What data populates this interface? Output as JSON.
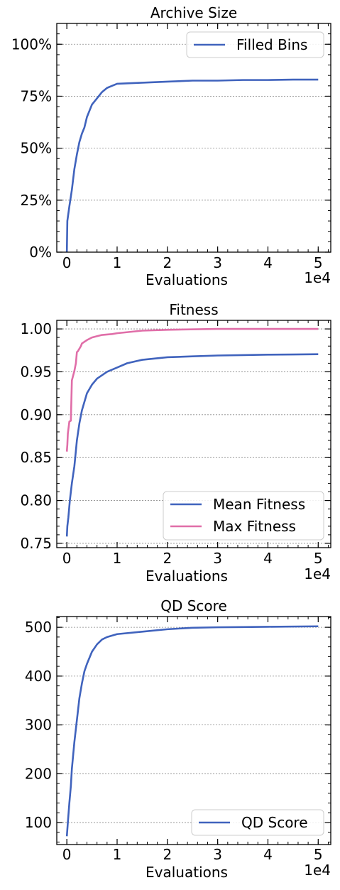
{
  "colors": {
    "blue": "#4063bd",
    "pink": "#e06ea8",
    "grid": "#8a8a8a"
  },
  "chart_data": [
    {
      "type": "line",
      "title": "Archive Size",
      "xlabel": "Evaluations",
      "ylabel": "",
      "x_multiplier_label": "1e4",
      "xlim": [
        -0.2,
        5.25
      ],
      "ylim": [
        0,
        110
      ],
      "xticks": [
        0,
        1,
        2,
        3,
        4,
        5
      ],
      "xtick_labels": [
        "0",
        "1",
        "2",
        "3",
        "4",
        "5"
      ],
      "yticks": [
        0,
        25,
        50,
        75,
        100
      ],
      "ytick_labels": [
        "0%",
        "25%",
        "50%",
        "75%",
        "100%"
      ],
      "grid": true,
      "legend_position": "top-right",
      "series": [
        {
          "name": "Filled Bins",
          "color": "#4063bd",
          "x": [
            0,
            0.01,
            0.05,
            0.1,
            0.15,
            0.2,
            0.25,
            0.3,
            0.35,
            0.4,
            0.5,
            0.6,
            0.7,
            0.8,
            0.9,
            1.0,
            1.5,
            2.0,
            2.5,
            3.0,
            3.5,
            4.0,
            4.5,
            5.0
          ],
          "y": [
            0,
            15,
            22,
            30,
            40,
            47,
            53,
            57,
            60,
            65,
            71,
            74,
            77,
            79,
            80,
            81,
            81.5,
            82,
            82.5,
            82.5,
            82.8,
            82.8,
            83,
            83
          ]
        }
      ]
    },
    {
      "type": "line",
      "title": "Fitness",
      "xlabel": "Evaluations",
      "ylabel": "",
      "x_multiplier_label": "1e4",
      "xlim": [
        -0.2,
        5.25
      ],
      "ylim": [
        0.745,
        1.01
      ],
      "xticks": [
        0,
        1,
        2,
        3,
        4,
        5
      ],
      "xtick_labels": [
        "0",
        "1",
        "2",
        "3",
        "4",
        "5"
      ],
      "yticks": [
        0.75,
        0.8,
        0.85,
        0.9,
        0.95,
        1.0
      ],
      "ytick_labels": [
        "0.75",
        "0.80",
        "0.85",
        "0.90",
        "0.95",
        "1.00"
      ],
      "grid": true,
      "legend_position": "bottom-right",
      "series": [
        {
          "name": "Mean Fitness",
          "color": "#4063bd",
          "x": [
            0,
            0.01,
            0.03,
            0.06,
            0.1,
            0.15,
            0.2,
            0.25,
            0.3,
            0.4,
            0.5,
            0.6,
            0.8,
            1.0,
            1.2,
            1.5,
            2.0,
            2.5,
            3.0,
            3.5,
            4.0,
            4.5,
            5.0
          ],
          "y": [
            0.758,
            0.77,
            0.78,
            0.8,
            0.82,
            0.84,
            0.87,
            0.89,
            0.905,
            0.925,
            0.935,
            0.942,
            0.95,
            0.955,
            0.96,
            0.964,
            0.967,
            0.968,
            0.969,
            0.9695,
            0.97,
            0.9702,
            0.9705
          ]
        },
        {
          "name": "Max Fitness",
          "color": "#e06ea8",
          "x": [
            0,
            0.01,
            0.02,
            0.05,
            0.08,
            0.1,
            0.15,
            0.18,
            0.2,
            0.22,
            0.28,
            0.3,
            0.35,
            0.4,
            0.5,
            0.7,
            0.9,
            1.0,
            1.5,
            2.0,
            3.0,
            4.0,
            5.0
          ],
          "y": [
            0.857,
            0.865,
            0.878,
            0.892,
            0.893,
            0.94,
            0.951,
            0.96,
            0.973,
            0.974,
            0.98,
            0.983,
            0.985,
            0.987,
            0.99,
            0.993,
            0.994,
            0.995,
            0.998,
            0.999,
            1.0,
            1.0,
            1.0
          ]
        }
      ]
    },
    {
      "type": "line",
      "title": "QD Score",
      "xlabel": "Evaluations",
      "ylabel": "",
      "x_multiplier_label": "1e4",
      "xlim": [
        -0.2,
        5.25
      ],
      "ylim": [
        55,
        522
      ],
      "xticks": [
        0,
        1,
        2,
        3,
        4,
        5
      ],
      "xtick_labels": [
        "0",
        "1",
        "2",
        "3",
        "4",
        "5"
      ],
      "yticks": [
        100,
        200,
        300,
        400,
        500
      ],
      "ytick_labels": [
        "100",
        "200",
        "300",
        "400",
        "500"
      ],
      "grid": true,
      "legend_position": "bottom-right",
      "series": [
        {
          "name": "QD Score",
          "color": "#4063bd",
          "x": [
            0,
            0.02,
            0.05,
            0.08,
            0.1,
            0.15,
            0.2,
            0.25,
            0.3,
            0.35,
            0.4,
            0.5,
            0.6,
            0.7,
            0.8,
            1.0,
            1.5,
            2.0,
            2.5,
            3.0,
            3.5,
            4.0,
            5.0
          ],
          "y": [
            72,
            100,
            140,
            175,
            210,
            265,
            310,
            355,
            385,
            410,
            425,
            450,
            465,
            475,
            480,
            486,
            491,
            496,
            499,
            500,
            500.5,
            501,
            502
          ]
        }
      ]
    }
  ]
}
